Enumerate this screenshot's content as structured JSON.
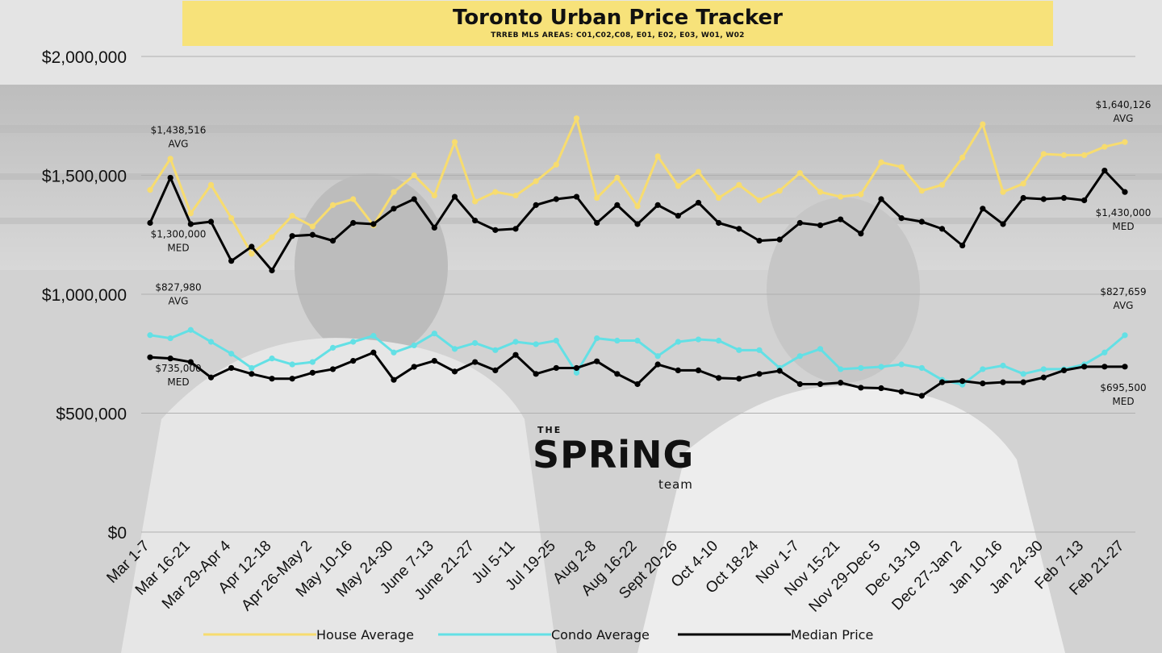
{
  "title": "Toronto Urban Price Tracker",
  "subtitle": "TRREB MLS AREAS: C01,C02,C08, E01, E02, E03, W01, W02",
  "logo": {
    "the": "THE",
    "name": "SPRiNG",
    "team": "team"
  },
  "colors": {
    "house": "#f7dc6f",
    "condo": "#63e0e5",
    "median": "#000000",
    "banner": "#f7e27a"
  },
  "chart_data": {
    "type": "line",
    "ylim": [
      0,
      2000000
    ],
    "y_ticks": [
      "$0",
      "$500,000",
      "$1,000,000",
      "$1,500,000",
      "$2,000,000"
    ],
    "x_labels": [
      "Mar 1-7",
      "Mar 16-21",
      "Mar 29-Apr 4",
      "Apr 12-18",
      "Apr 26-May 2",
      "May 10-16",
      "May 24-30",
      "June 7-13",
      "June 21-27",
      "Jul 5-11",
      "Jul 19-25",
      "Aug 2-8",
      "Aug 16-22",
      "Sept 20-26",
      "Oct 4-10",
      "Oct 18-24",
      "Nov 1-7",
      "Nov 15-21",
      "Nov 29-Dec 5",
      "Dec 13-19",
      "Dec 27-Jan 2",
      "Jan 10-16",
      "Jan 24-30",
      "Feb 7-13",
      "Feb 21-27"
    ],
    "series": [
      {
        "name": "House Average",
        "color": "#f7dc6f",
        "values": [
          1438516,
          1570000,
          1340000,
          1460000,
          1320000,
          1170000,
          1240000,
          1330000,
          1285000,
          1375000,
          1400000,
          1290000,
          1430000,
          1500000,
          1415000,
          1640000,
          1390000,
          1430000,
          1415000,
          1475000,
          1545000,
          1740000,
          1405000,
          1490000,
          1370000,
          1580000,
          1455000,
          1515000,
          1405000,
          1460000,
          1395000,
          1435000,
          1510000,
          1430000,
          1410000,
          1420000,
          1555000,
          1535000,
          1435000,
          1460000,
          1575000,
          1715000,
          1430000,
          1465000,
          1590000,
          1585000,
          1585000,
          1620000,
          1640126
        ]
      },
      {
        "name": "Condo Average",
        "color": "#63e0e5",
        "values": [
          827980,
          815000,
          850000,
          800000,
          750000,
          690000,
          730000,
          705000,
          715000,
          775000,
          800000,
          825000,
          755000,
          785000,
          835000,
          770000,
          795000,
          765000,
          800000,
          790000,
          805000,
          670000,
          815000,
          805000,
          805000,
          740000,
          800000,
          810000,
          805000,
          765000,
          765000,
          690000,
          740000,
          770000,
          685000,
          690000,
          695000,
          705000,
          690000,
          640000,
          620000,
          685000,
          700000,
          665000,
          685000,
          685000,
          705000,
          755000,
          827659
        ]
      },
      {
        "name": "Median Price",
        "color": "#000000",
        "values": [
          735000,
          730000,
          715000,
          650000,
          690000,
          665000,
          645000,
          645000,
          670000,
          685000,
          720000,
          755000,
          640000,
          695000,
          720000,
          675000,
          715000,
          680000,
          745000,
          665000,
          690000,
          690000,
          718000,
          665000,
          622000,
          705000,
          680000,
          680000,
          648000,
          645000,
          665000,
          678000,
          622000,
          622000,
          628000,
          607000,
          605000,
          590000,
          573000,
          630000,
          635000,
          625000,
          630000,
          630000,
          650000,
          680000,
          695500,
          695500,
          695500
        ]
      },
      {
        "name": "Median Price",
        "color": "#000000",
        "values": [
          1300000,
          1490000,
          1295000,
          1305000,
          1140000,
          1200000,
          1100000,
          1245000,
          1250000,
          1225000,
          1300000,
          1295000,
          1360000,
          1400000,
          1280000,
          1410000,
          1310000,
          1270000,
          1275000,
          1375000,
          1400000,
          1410000,
          1300000,
          1375000,
          1295000,
          1375000,
          1330000,
          1385000,
          1300000,
          1275000,
          1225000,
          1230000,
          1300000,
          1290000,
          1315000,
          1255000,
          1400000,
          1320000,
          1305000,
          1275000,
          1205000,
          1360000,
          1295000,
          1405000,
          1400000,
          1405000,
          1395000,
          1520000,
          1430000
        ]
      }
    ],
    "annotations": [
      {
        "text": "$1,438,516",
        "sub": "AVG"
      },
      {
        "text": "$1,300,000",
        "sub": "MED"
      },
      {
        "text": "$827,980",
        "sub": "AVG"
      },
      {
        "text": "$735,000",
        "sub": "MED"
      },
      {
        "text": "$1,640,126",
        "sub": "AVG"
      },
      {
        "text": "$1,430,000",
        "sub": "MED"
      },
      {
        "text": "$827,659",
        "sub": "AVG"
      },
      {
        "text": "$695,500",
        "sub": "MED"
      }
    ],
    "legend": [
      {
        "label": "House Average",
        "color": "#f7dc6f"
      },
      {
        "label": "Condo Average",
        "color": "#63e0e5"
      },
      {
        "label": "Median Price",
        "color": "#000000"
      }
    ],
    "legend_position": "bottom",
    "grid": true
  }
}
